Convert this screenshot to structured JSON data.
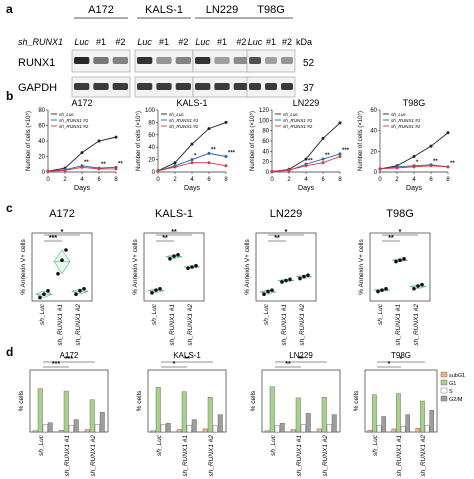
{
  "panel_a": {
    "letter": "a",
    "cell_lines": [
      "A172",
      "KALS-1",
      "LN229",
      "T98G"
    ],
    "lane_labels": [
      "Luc",
      "#1",
      "#2"
    ],
    "row_header": "sh_RUNX1",
    "kda_label": "kDa",
    "proteins": [
      "RUNX1",
      "GAPDH"
    ],
    "kda_values": [
      "52",
      "37"
    ]
  },
  "panel_b": {
    "letter": "b",
    "ylabel": "Number of cells (×10⁵)",
    "xlabel": "Days",
    "legend": [
      "sh_Luc",
      "sh_RUNX1 #1",
      "sh_RUNX1 #2"
    ],
    "charts": [
      {
        "type": "line",
        "title": "A172",
        "ylim": [
          0,
          80
        ],
        "yticks": [
          0,
          20,
          40,
          60,
          80
        ],
        "x": [
          0,
          2,
          4,
          6,
          8
        ],
        "series": [
          {
            "name": "sh_Luc",
            "values": [
              1,
              5,
              25,
              40,
              45
            ],
            "color": "#222222"
          },
          {
            "name": "sh_RUNX1 #1",
            "values": [
              1,
              3,
              8,
              5,
              6
            ],
            "color": "#2a5fb8"
          },
          {
            "name": "sh_RUNX1 #2",
            "values": [
              1,
              2,
              6,
              4,
              4
            ],
            "color": "#d63a3a"
          }
        ],
        "sig": [
          "**",
          "**",
          "**"
        ]
      },
      {
        "type": "line",
        "title": "KALS-1",
        "ylim": [
          0,
          100
        ],
        "yticks": [
          0,
          20,
          40,
          60,
          80,
          100
        ],
        "x": [
          0,
          2,
          4,
          6,
          8
        ],
        "series": [
          {
            "name": "sh_Luc",
            "values": [
              2,
              15,
              45,
              70,
              80
            ],
            "color": "#222222"
          },
          {
            "name": "sh_RUNX1 #1",
            "values": [
              2,
              10,
              20,
              30,
              25
            ],
            "color": "#2a5fb8"
          },
          {
            "name": "sh_RUNX1 #2",
            "values": [
              2,
              8,
              15,
              15,
              10
            ],
            "color": "#d63a3a"
          }
        ],
        "sig": [
          "*",
          "**",
          "***"
        ]
      },
      {
        "type": "line",
        "title": "LN229",
        "ylim": [
          0,
          120
        ],
        "yticks": [
          0,
          20,
          40,
          60,
          80,
          100,
          120
        ],
        "x": [
          0,
          2,
          4,
          6,
          8
        ],
        "series": [
          {
            "name": "sh_Luc",
            "values": [
              1,
              5,
              25,
              65,
              95
            ],
            "color": "#222222"
          },
          {
            "name": "sh_RUNX1 #1",
            "values": [
              1,
              3,
              15,
              25,
              35
            ],
            "color": "#2a5fb8"
          },
          {
            "name": "sh_RUNX1 #2",
            "values": [
              1,
              4,
              12,
              18,
              30
            ],
            "color": "#d63a3a"
          }
        ],
        "sig": [
          "**",
          "**",
          "***"
        ]
      },
      {
        "type": "line",
        "title": "T98G",
        "ylim": [
          0,
          60
        ],
        "yticks": [
          0,
          20,
          40,
          60
        ],
        "x": [
          0,
          2,
          4,
          6,
          8
        ],
        "series": [
          {
            "name": "sh_Luc",
            "values": [
              3,
              6,
              15,
              25,
              38
            ],
            "color": "#222222"
          },
          {
            "name": "sh_RUNX1 #1",
            "values": [
              3,
              5,
              6,
              7,
              5
            ],
            "color": "#2a5fb8"
          },
          {
            "name": "sh_RUNX1 #2",
            "values": [
              3,
              4,
              5,
              6,
              5
            ],
            "color": "#d63a3a"
          }
        ],
        "sig": [
          "*",
          "**",
          "**"
        ]
      }
    ]
  },
  "panel_c": {
    "letter": "c",
    "ylabel": "% Annexin V+ cells",
    "categories": [
      "sh_Luc",
      "sh_RUNX1 #1",
      "sh_RUNX1 #2"
    ],
    "charts": [
      {
        "type": "scatter",
        "title": "A172",
        "ylim": [
          0,
          100
        ],
        "points": [
          [
            5,
            10,
            15
          ],
          [
            40,
            60,
            75
          ],
          [
            10,
            15,
            18
          ]
        ],
        "sig": [
          "***",
          "*"
        ]
      },
      {
        "type": "scatter",
        "title": "KALS-1",
        "ylim": [
          0,
          100
        ],
        "points": [
          [
            12,
            16,
            18
          ],
          [
            62,
            66,
            68
          ],
          [
            48,
            50,
            52
          ]
        ],
        "sig": [
          "**",
          "**"
        ]
      },
      {
        "type": "scatter",
        "title": "LN229",
        "ylim": [
          0,
          100
        ],
        "points": [
          [
            10,
            14,
            16
          ],
          [
            28,
            30,
            32
          ],
          [
            33,
            36,
            38
          ]
        ],
        "sig": [
          "**",
          "*"
        ]
      },
      {
        "type": "scatter",
        "title": "T98G",
        "ylim": [
          0,
          100
        ],
        "points": [
          [
            14,
            16,
            18
          ],
          [
            58,
            60,
            62
          ],
          [
            18,
            22,
            24
          ]
        ],
        "sig": [
          "**",
          "*"
        ]
      }
    ]
  },
  "panel_d": {
    "letter": "d",
    "ylabel": "% cells",
    "categories": [
      "sh_Luc",
      "sh_RUNX1 #1",
      "sh_RUNX1 #2"
    ],
    "legend": [
      "subG1",
      "G1",
      "S",
      "G2/M"
    ],
    "colors": [
      "#f4b183",
      "#a9d18e",
      "#ffffff",
      "#9e9e9e"
    ],
    "charts": [
      {
        "type": "bar",
        "title": "A172",
        "ylim": [
          0,
          100
        ],
        "groups": [
          [
            2,
            70,
            12,
            15
          ],
          [
            3,
            66,
            11,
            20
          ],
          [
            4,
            52,
            12,
            32
          ]
        ],
        "sig": [
          "***",
          "***"
        ]
      },
      {
        "type": "bar",
        "title": "KALS-1",
        "ylim": [
          0,
          100
        ],
        "groups": [
          [
            2,
            72,
            12,
            14
          ],
          [
            4,
            65,
            11,
            20
          ],
          [
            5,
            56,
            10,
            28
          ]
        ],
        "sig": [
          "*",
          "**"
        ]
      },
      {
        "type": "bar",
        "title": "LN229",
        "ylim": [
          0,
          100
        ],
        "groups": [
          [
            2,
            73,
            10,
            14
          ],
          [
            4,
            55,
            12,
            30
          ],
          [
            5,
            56,
            12,
            28
          ]
        ],
        "sig": [
          "**",
          "**"
        ]
      },
      {
        "type": "bar",
        "title": "T98G",
        "ylim": [
          0,
          100
        ],
        "groups": [
          [
            3,
            60,
            10,
            25
          ],
          [
            5,
            62,
            9,
            28
          ],
          [
            6,
            50,
            10,
            35
          ]
        ],
        "sig": [
          "*",
          "*"
        ]
      }
    ]
  }
}
